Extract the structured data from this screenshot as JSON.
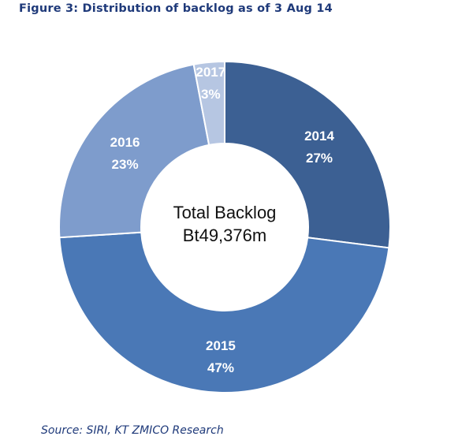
{
  "figure": {
    "title": "Figure 3: Distribution of backlog as of 3 Aug 14",
    "source": "Source: SIRI, KT ZMICO Research"
  },
  "chart_data": {
    "type": "pie",
    "style": "donut",
    "categories": [
      "2014",
      "2015",
      "2016",
      "2017"
    ],
    "values": [
      27,
      47,
      23,
      3
    ],
    "value_labels": [
      "27%",
      "47%",
      "23%",
      "3%"
    ],
    "units": "%",
    "center_label": [
      "Total Backlog",
      "Bt49,376m"
    ],
    "colors": [
      "#3c6093",
      "#4a78b6",
      "#7e9ccc",
      "#b6c6e2"
    ],
    "legend": "none"
  }
}
